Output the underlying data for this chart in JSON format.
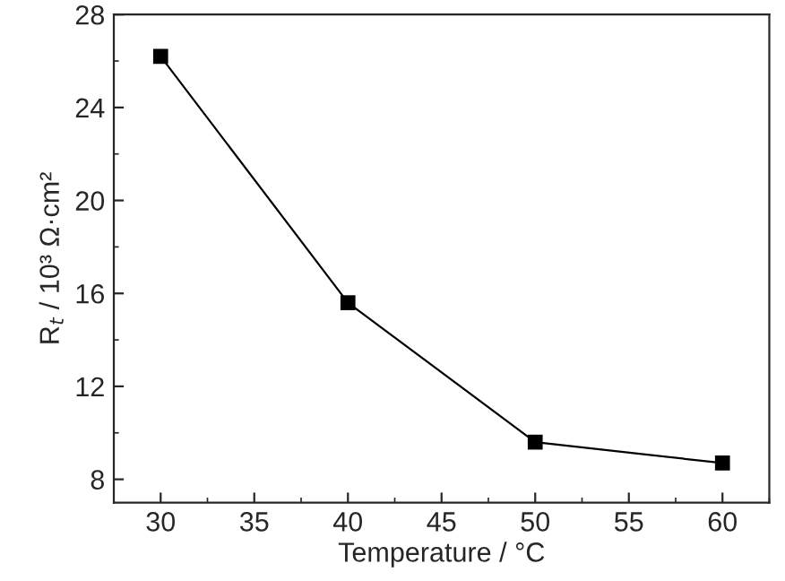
{
  "chart_data": {
    "type": "line",
    "xlabel": "Temperature / °C",
    "ylabel": "R$_{t}$ / 10³ Ω·cm²",
    "x": [
      30,
      40,
      50,
      60
    ],
    "series": [
      {
        "color": "#000000",
        "values": [
          26.2,
          15.6,
          9.6,
          8.7
        ]
      }
    ],
    "marker": "square",
    "line_style": "solid",
    "xlim": [
      27.5,
      62.5
    ],
    "xticks": [
      30,
      35,
      40,
      45,
      50,
      55,
      60
    ],
    "ylim": [
      7,
      28
    ],
    "yticks": [
      8,
      12,
      16,
      20,
      24,
      28
    ],
    "grid": false,
    "legend": false
  }
}
